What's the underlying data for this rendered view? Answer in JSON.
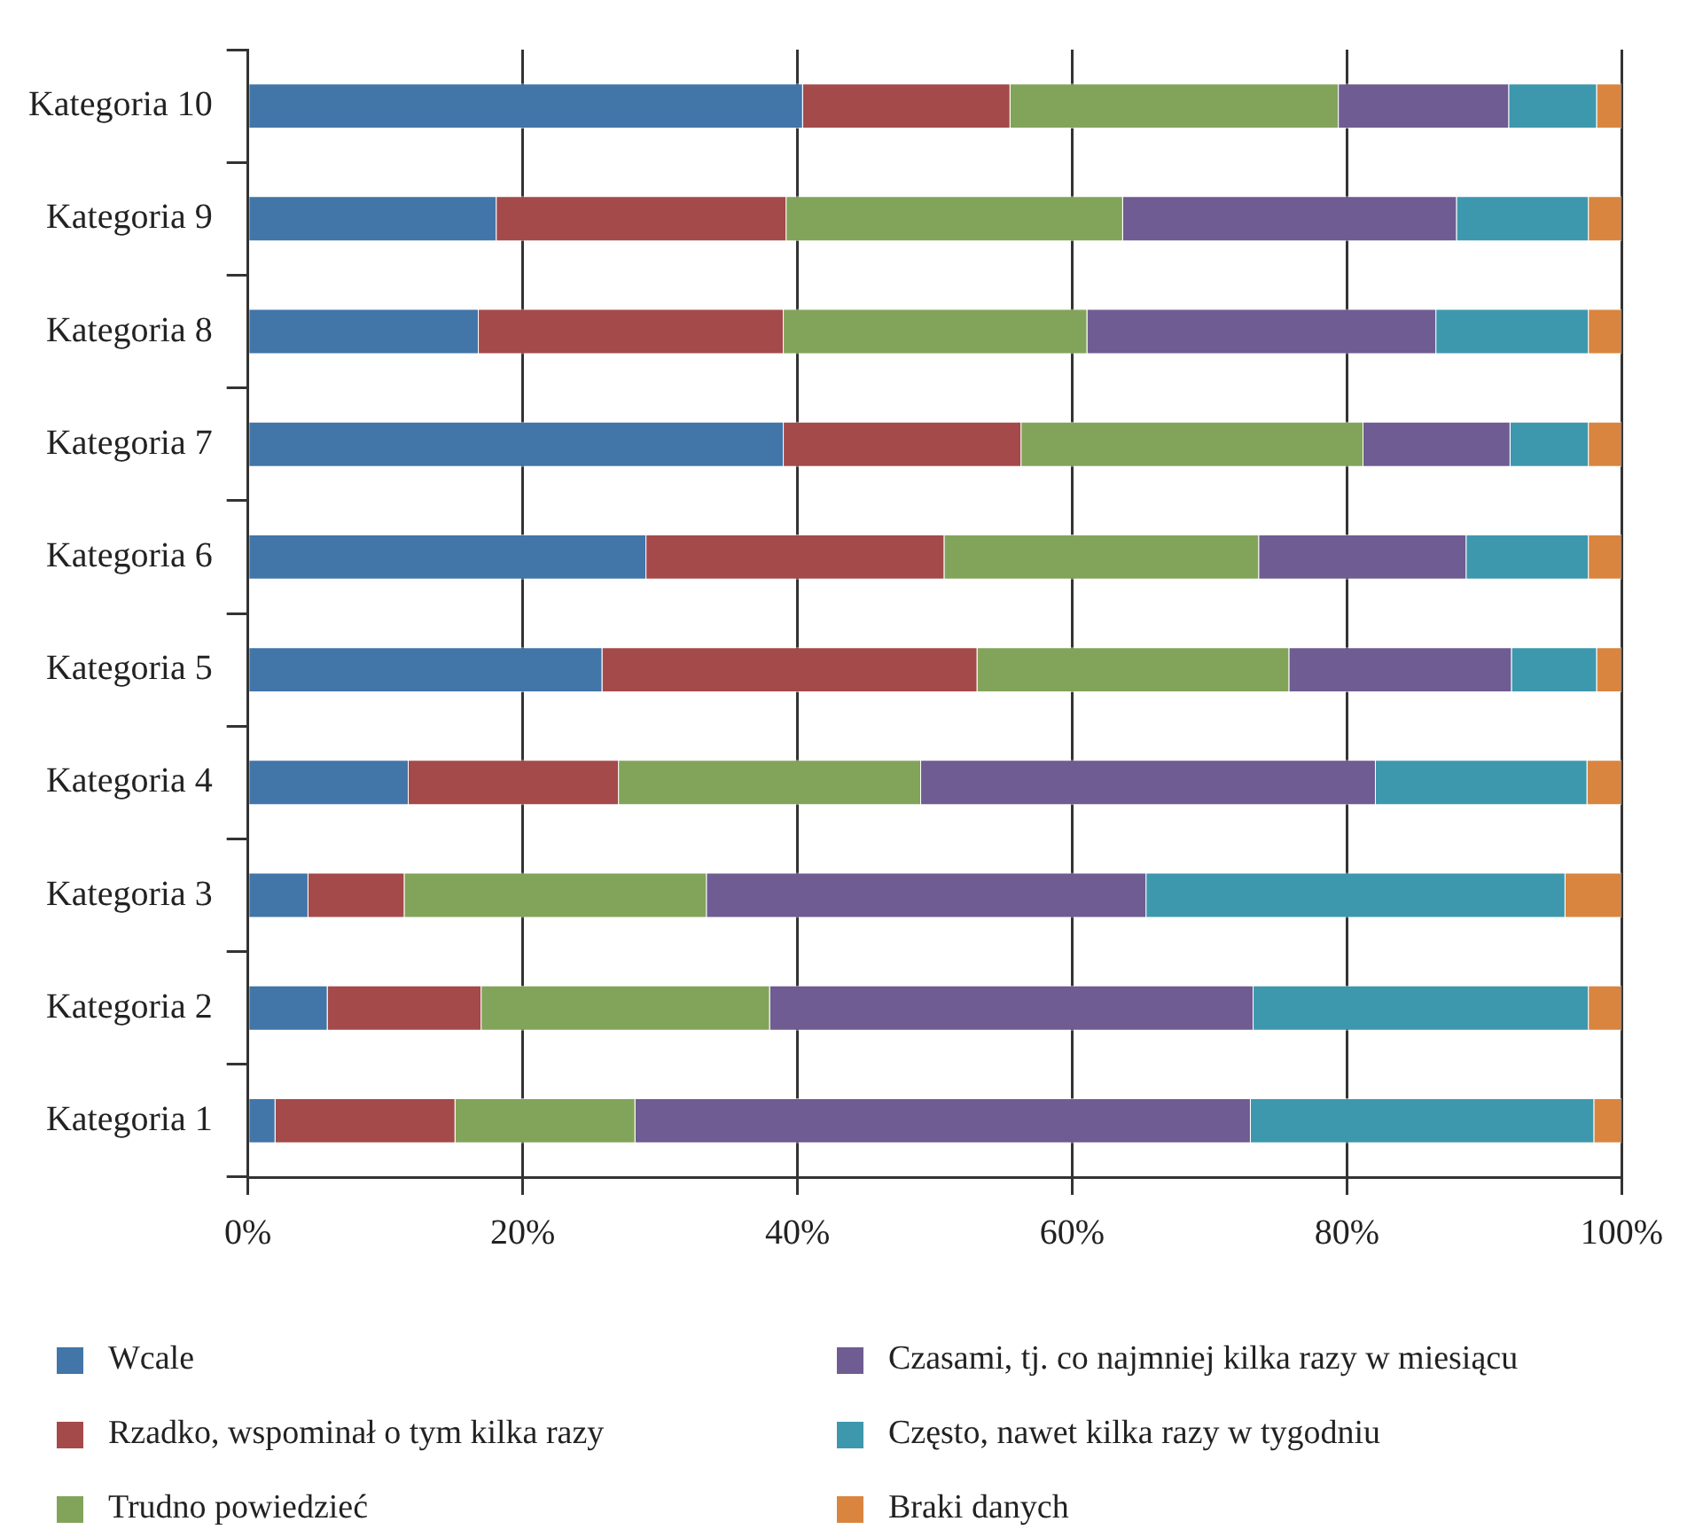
{
  "chart_data": {
    "type": "bar",
    "orientation": "horizontal",
    "stacked": true,
    "categories": [
      "Kategoria 10",
      "Kategoria 9",
      "Kategoria 8",
      "Kategoria 7",
      "Kategoria 6",
      "Kategoria 5",
      "Kategoria 4",
      "Kategoria 3",
      "Kategoria 2",
      "Kategoria 1"
    ],
    "series": [
      {
        "name": "Wcale",
        "color": "#4275a8",
        "values": [
          40.4,
          18.1,
          16.8,
          39.0,
          29.0,
          25.8,
          11.7,
          4.4,
          5.8,
          2.0
        ]
      },
      {
        "name": "Rzadko, wspominał o tym kilka razy",
        "color": "#a44a4a",
        "values": [
          15.1,
          21.1,
          22.2,
          17.3,
          21.7,
          27.3,
          15.3,
          7.0,
          11.2,
          13.1
        ]
      },
      {
        "name": "Trudno powiedzieć",
        "color": "#82a45a",
        "values": [
          23.9,
          24.5,
          22.1,
          24.9,
          22.9,
          22.7,
          22.0,
          22.0,
          21.0,
          13.1
        ]
      },
      {
        "name": "Czasami, tj. co najmniej kilka razy w miesiącu",
        "color": "#6f5c92",
        "values": [
          12.4,
          24.3,
          25.4,
          10.7,
          15.1,
          16.2,
          33.1,
          32.0,
          35.2,
          44.8
        ]
      },
      {
        "name": "Często, nawet kilka razy w tygodniu",
        "color": "#3d98ad",
        "values": [
          6.4,
          9.6,
          11.1,
          5.7,
          8.9,
          6.2,
          15.4,
          30.5,
          24.4,
          25.0
        ]
      },
      {
        "name": "Braki danych",
        "color": "#d9853f",
        "values": [
          1.8,
          2.4,
          2.4,
          2.4,
          2.4,
          1.8,
          2.5,
          4.1,
          2.4,
          2.0
        ]
      }
    ],
    "xlim": [
      0,
      100
    ],
    "xticks": [
      {
        "value": 0,
        "label": "0%"
      },
      {
        "value": 20,
        "label": "20%"
      },
      {
        "value": 40,
        "label": "40%"
      },
      {
        "value": 60,
        "label": "60%"
      },
      {
        "value": 80,
        "label": "80%"
      },
      {
        "value": 100,
        "label": "100%"
      }
    ],
    "grid": "x",
    "legend": "bottom"
  }
}
